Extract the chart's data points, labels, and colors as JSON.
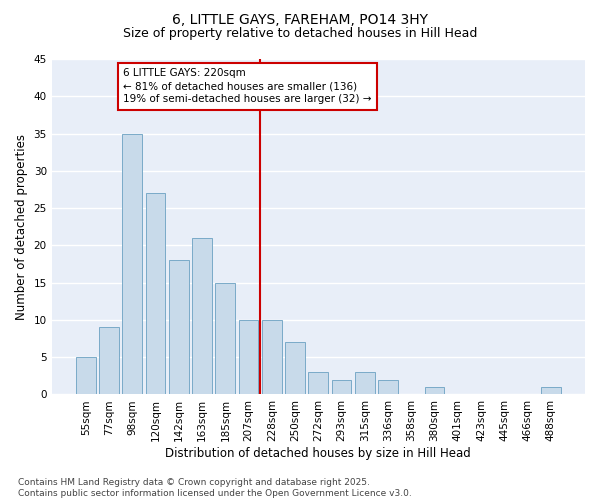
{
  "title": "6, LITTLE GAYS, FAREHAM, PO14 3HY",
  "subtitle": "Size of property relative to detached houses in Hill Head",
  "xlabel": "Distribution of detached houses by size in Hill Head",
  "ylabel": "Number of detached properties",
  "bar_color": "#c8daea",
  "bar_edge_color": "#7aaac8",
  "categories": [
    "55sqm",
    "77sqm",
    "98sqm",
    "120sqm",
    "142sqm",
    "163sqm",
    "185sqm",
    "207sqm",
    "228sqm",
    "250sqm",
    "272sqm",
    "293sqm",
    "315sqm",
    "336sqm",
    "358sqm",
    "380sqm",
    "401sqm",
    "423sqm",
    "445sqm",
    "466sqm",
    "488sqm"
  ],
  "values": [
    5,
    9,
    35,
    27,
    18,
    21,
    15,
    10,
    10,
    7,
    3,
    2,
    3,
    2,
    0,
    1,
    0,
    0,
    0,
    0,
    1
  ],
  "vline_idx": 8,
  "vline_color": "#cc0000",
  "annotation_line1": "6 LITTLE GAYS: 220sqm",
  "annotation_line2": "← 81% of detached houses are smaller (136)",
  "annotation_line3": "19% of semi-detached houses are larger (32) →",
  "annotation_box_color": "#cc0000",
  "ylim": [
    0,
    45
  ],
  "yticks": [
    0,
    5,
    10,
    15,
    20,
    25,
    30,
    35,
    40,
    45
  ],
  "footer": "Contains HM Land Registry data © Crown copyright and database right 2025.\nContains public sector information licensed under the Open Government Licence v3.0.",
  "bg_color": "#ffffff",
  "plot_bg_color": "#e8eef8",
  "grid_color": "#ffffff",
  "title_fontsize": 10,
  "subtitle_fontsize": 9,
  "axis_label_fontsize": 8.5,
  "tick_fontsize": 7.5,
  "annotation_fontsize": 7.5,
  "footer_fontsize": 6.5
}
